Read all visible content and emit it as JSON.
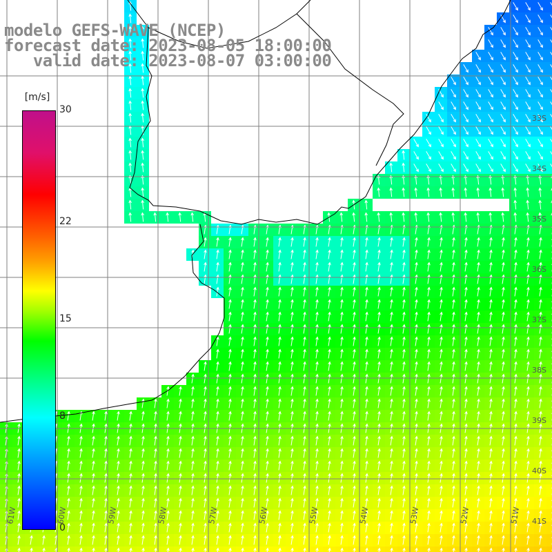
{
  "title": {
    "line1": "modelo GEFS-WAVE (NCEP)",
    "line2": "forecast date: 2023-08-05 18:00:00",
    "line3": "   valid date: 2023-08-07 03:00:00"
  },
  "colorbar": {
    "unit": "[m/s]",
    "ticks": [
      {
        "value": 30,
        "label": "30"
      },
      {
        "value": 22,
        "label": "22"
      },
      {
        "value": 15,
        "label": "15"
      },
      {
        "value": 8,
        "label": "8"
      },
      {
        "value": 0,
        "label": "0"
      }
    ]
  },
  "lat_labels": [
    "33S",
    "34S",
    "35S",
    "36S",
    "37S",
    "38S",
    "39S",
    "40S",
    "41S"
  ],
  "lon_labels": [
    "61W",
    "60W",
    "59W",
    "58W",
    "57W",
    "56W",
    "55W",
    "54W",
    "53W",
    "52W",
    "51W"
  ],
  "colors": {
    "land": "#ffffff",
    "grid": "#7f7f7f",
    "coast": "#000000",
    "arrow": "#ffffff",
    "title": "#8a8a8a"
  }
}
